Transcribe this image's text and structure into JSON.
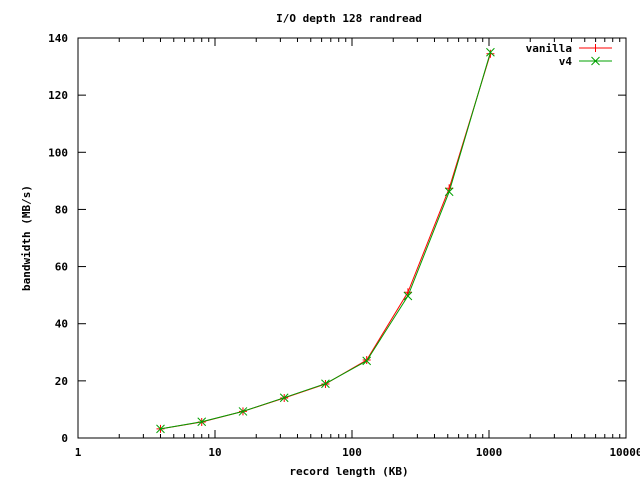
{
  "chart_data": {
    "type": "line",
    "title": "I/O depth 128 randread",
    "xlabel": "record length (KB)",
    "ylabel": "bandwidth (MB/s)",
    "xscale": "log",
    "xlim": [
      1,
      10000
    ],
    "ylim": [
      0,
      140
    ],
    "xticks": [
      1,
      10,
      100,
      1000,
      10000
    ],
    "xtick_labels": [
      "1",
      "10",
      "100",
      "1000",
      "10000"
    ],
    "yticks": [
      0,
      20,
      40,
      60,
      80,
      100,
      120,
      140
    ],
    "ytick_labels": [
      "0",
      "20",
      "40",
      "60",
      "80",
      "100",
      "120",
      "140"
    ],
    "grid": false,
    "legend_position": "top-right",
    "x": [
      4,
      8,
      16,
      32,
      64,
      128,
      256,
      512,
      1024
    ],
    "series": [
      {
        "name": "vanilla",
        "color": "#ff0000",
        "marker": "plus",
        "values": [
          3.2,
          5.6,
          9.3,
          14.0,
          18.9,
          27.3,
          51.0,
          87.4,
          134.5
        ]
      },
      {
        "name": "v4",
        "color": "#00a000",
        "marker": "x",
        "values": [
          3.2,
          5.7,
          9.3,
          14.1,
          19.0,
          27.0,
          49.7,
          86.2,
          135.0
        ]
      }
    ]
  }
}
